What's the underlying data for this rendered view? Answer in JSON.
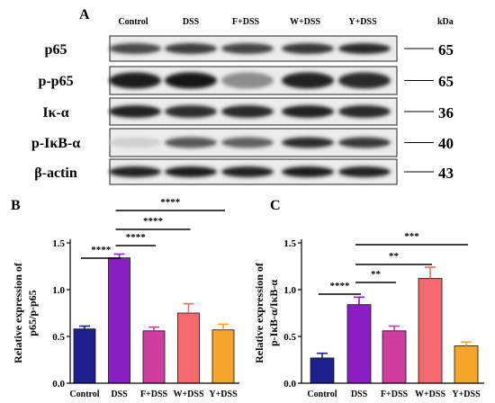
{
  "panel_a": {
    "label": "A",
    "columns": [
      "Control",
      "DSS",
      "F+DSS",
      "W+DSS",
      "Y+DSS"
    ],
    "kda_header": "kDa",
    "rows": [
      {
        "protein": "p65",
        "kda": "65"
      },
      {
        "protein": "p-p65",
        "kda": "65"
      },
      {
        "protein": "Iκ-α",
        "kda": "36"
      },
      {
        "protein": "p-IκB-α",
        "kda": "40"
      },
      {
        "protein": "β-actin",
        "kda": "43"
      }
    ]
  },
  "chart_data": [
    {
      "panel": "B",
      "type": "bar",
      "categories": [
        "Control",
        "DSS",
        "F+DSS",
        "W+DSS",
        "Y+DSS"
      ],
      "values": [
        0.58,
        1.34,
        0.56,
        0.75,
        0.57
      ],
      "errors": [
        0.03,
        0.04,
        0.04,
        0.1,
        0.06
      ],
      "colors": [
        "#1c1f8c",
        "#8b1fc4",
        "#cc3d9e",
        "#f26a6e",
        "#f5a62a"
      ],
      "ylabel": [
        "Relative expression of",
        "p65/p-p65"
      ],
      "ylim": [
        0,
        1.5
      ],
      "yticks": [
        "0.0",
        "0.5",
        "1.0",
        "1.5"
      ],
      "significance": [
        {
          "from": 1,
          "to": 4,
          "label": "****"
        },
        {
          "from": 1,
          "to": 3,
          "label": "****"
        },
        {
          "from": 1,
          "to": 2,
          "label": "****"
        },
        {
          "from": 0,
          "to": 1,
          "label": "****"
        }
      ]
    },
    {
      "panel": "C",
      "type": "bar",
      "categories": [
        "Control",
        "DSS",
        "F+DSS",
        "W+DSS",
        "Y+DSS"
      ],
      "values": [
        0.27,
        0.84,
        0.56,
        1.12,
        0.4
      ],
      "errors": [
        0.05,
        0.08,
        0.05,
        0.12,
        0.04
      ],
      "colors": [
        "#1c1f8c",
        "#8b1fc4",
        "#cc3d9e",
        "#f26a6e",
        "#f5a62a"
      ],
      "ylabel": [
        "Relative expression of",
        "p-IκB-α/IκB-α"
      ],
      "ylim": [
        0,
        1.5
      ],
      "yticks": [
        "0.0",
        "0.5",
        "1.0",
        "1.5"
      ],
      "significance": [
        {
          "from": 1,
          "to": 4,
          "label": "***"
        },
        {
          "from": 1,
          "to": 3,
          "label": "**"
        },
        {
          "from": 1,
          "to": 2,
          "label": "**"
        },
        {
          "from": 0,
          "to": 1,
          "label": "****"
        }
      ]
    }
  ]
}
